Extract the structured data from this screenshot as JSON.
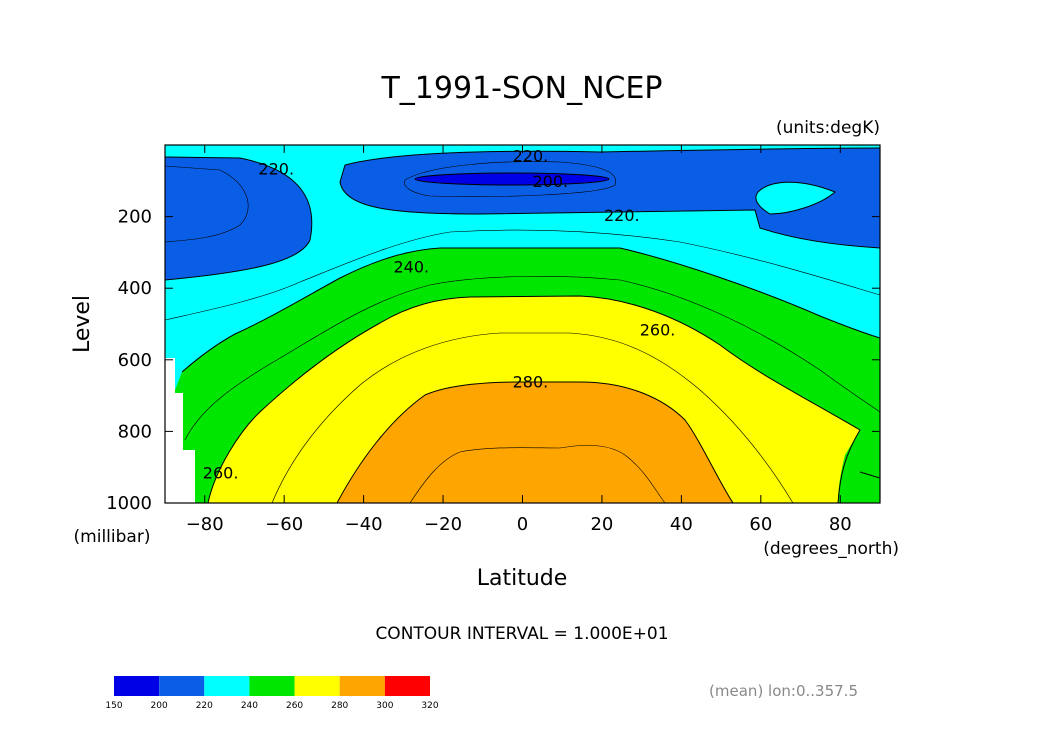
{
  "chart_data": {
    "type": "contour",
    "title": "T_1991-SON_NCEP",
    "units_note": "(units:degK)",
    "xlabel": "Latitude",
    "ylabel": "Level",
    "x_units": "(degrees_north)",
    "y_units": "(millibar)",
    "xlim": [
      -90,
      90
    ],
    "ylim": [
      0,
      1000
    ],
    "y_inverted": true,
    "x_ticks": [
      -80,
      -60,
      -40,
      -20,
      0,
      20,
      40,
      60,
      80
    ],
    "y_ticks": [
      200,
      400,
      600,
      800,
      1000
    ],
    "contour_interval_text": "CONTOUR INTERVAL = 1.000E+01",
    "footnote": "(mean) lon:0..357.5",
    "contour_labels": [
      {
        "text": "220.",
        "lat": -62,
        "level": 65
      },
      {
        "text": "220.",
        "lat": 2,
        "level": 30
      },
      {
        "text": "200.",
        "lat": 7,
        "level": 100
      },
      {
        "text": "220.",
        "lat": 25,
        "level": 195
      },
      {
        "text": "240.",
        "lat": -28,
        "level": 340
      },
      {
        "text": "260.",
        "lat": 34,
        "level": 515
      },
      {
        "text": "280.",
        "lat": 2,
        "level": 660
      },
      {
        "text": "260.",
        "lat": -76,
        "level": 915
      }
    ],
    "colorbar": {
      "levels": [
        150,
        200,
        220,
        240,
        260,
        280,
        300,
        320
      ],
      "labels": [
        "150",
        "200",
        "220",
        "240",
        "260",
        "280",
        "300",
        "320"
      ],
      "colors": [
        "#0000e6",
        "#0a5ee6",
        "#00ffff",
        "#00e600",
        "#ffff00",
        "#ffa500",
        "#ff0000"
      ]
    },
    "colors": {
      "below_200": "#0000e6",
      "band_200_220": "#0a5ee6",
      "band_220_240": "#00ffff",
      "band_240_260": "#00e600",
      "band_260_280": "#ffff00",
      "band_280_300": "#ffa500"
    }
  }
}
